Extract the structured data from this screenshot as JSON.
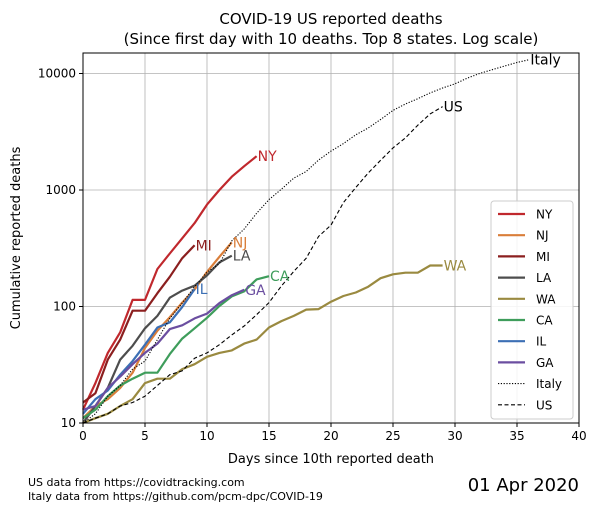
{
  "chart_data": {
    "type": "line",
    "title_line1": "COVID-19 US reported deaths",
    "title_line2": "(Since first day with 10 deaths. Top 8 states. Log scale)",
    "xlabel": "Days since 10th reported death",
    "ylabel": "Cumulative reported deaths",
    "xlim": [
      0,
      40
    ],
    "ylim": [
      10,
      15000
    ],
    "yscale": "log",
    "grid": true,
    "legend_position": "right",
    "x_ticks": [
      0,
      5,
      10,
      15,
      20,
      25,
      30,
      35,
      40
    ],
    "y_ticks": [
      {
        "value": 10,
        "label": "10"
      },
      {
        "value": 100,
        "label": "100"
      },
      {
        "value": 1000,
        "label": "1000"
      },
      {
        "value": 10000,
        "label": "10000"
      }
    ],
    "series": [
      {
        "name": "NY",
        "color": "#c0282d",
        "style": "solid",
        "end_label": "NY",
        "x": [
          0,
          1,
          2,
          3,
          4,
          5,
          6,
          7,
          8,
          9,
          10,
          11,
          12,
          13,
          14
        ],
        "y": [
          13,
          22,
          40,
          60,
          114,
          114,
          210,
          285,
          385,
          520,
          750,
          1000,
          1300,
          1600,
          1950
        ]
      },
      {
        "name": "NJ",
        "color": "#d97e3a",
        "style": "solid",
        "end_label": "NJ",
        "x": [
          0,
          1,
          2,
          3,
          4,
          5,
          6,
          7,
          8,
          9,
          10,
          11,
          12
        ],
        "y": [
          11,
          14,
          16,
          20,
          27,
          44,
          62,
          81,
          108,
          140,
          198,
          267,
          355
        ]
      },
      {
        "name": "MI",
        "color": "#8b1f1f",
        "style": "solid",
        "end_label": "MI",
        "x": [
          0,
          1,
          2,
          3,
          4,
          5,
          6,
          7,
          8,
          9
        ],
        "y": [
          15,
          18,
          35,
          52,
          92,
          92,
          130,
          180,
          260,
          335
        ]
      },
      {
        "name": "LA",
        "color": "#4d4d4d",
        "style": "solid",
        "end_label": "LA",
        "x": [
          0,
          1,
          2,
          3,
          4,
          5,
          6,
          7,
          8,
          9,
          10,
          11,
          12
        ],
        "y": [
          10,
          14,
          20,
          35,
          46,
          65,
          83,
          119,
          137,
          151,
          185,
          239,
          273
        ]
      },
      {
        "name": "WA",
        "color": "#9a8a40",
        "style": "solid",
        "end_label": "WA",
        "x": [
          0,
          1,
          2,
          3,
          4,
          5,
          6,
          7,
          8,
          9,
          10,
          11,
          12,
          13,
          14,
          15,
          16,
          17,
          18,
          19,
          20,
          21,
          22,
          23,
          24,
          25,
          26,
          27,
          28,
          29
        ],
        "y": [
          10,
          11,
          12,
          14,
          16,
          22,
          24,
          24,
          29,
          32,
          37,
          40,
          42,
          48,
          52,
          66,
          75,
          83,
          94,
          95,
          110,
          123,
          132,
          148,
          175,
          189,
          195,
          195,
          225,
          225
        ]
      },
      {
        "name": "CA",
        "color": "#3e9d5b",
        "style": "solid",
        "end_label": "CA",
        "x": [
          0,
          1,
          2,
          3,
          4,
          5,
          6,
          7,
          8,
          9,
          10,
          11,
          12,
          13,
          14,
          15
        ],
        "y": [
          11,
          13,
          17,
          21,
          24,
          27,
          27,
          39,
          53,
          65,
          80,
          101,
          122,
          135,
          171,
          182
        ]
      },
      {
        "name": "IL",
        "color": "#3c6fb4",
        "style": "solid",
        "end_label": "IL",
        "x": [
          0,
          1,
          2,
          3,
          4,
          5,
          6,
          7,
          8,
          9
        ],
        "y": [
          12,
          16,
          19,
          26,
          34,
          47,
          66,
          73,
          99,
          141
        ]
      },
      {
        "name": "GA",
        "color": "#6b4ea0",
        "style": "solid",
        "end_label": "GA",
        "x": [
          0,
          1,
          2,
          3,
          4,
          5,
          6,
          7,
          8,
          9,
          10,
          11,
          12,
          13
        ],
        "y": [
          13,
          14,
          20,
          25,
          32,
          40,
          48,
          64,
          69,
          79,
          87,
          107,
          125,
          139
        ]
      },
      {
        "name": "Italy",
        "color": "#000000",
        "style": "dotted",
        "end_label": "Italy",
        "x": [
          0,
          1,
          2,
          3,
          4,
          5,
          6,
          7,
          8,
          9,
          10,
          11,
          12,
          13,
          14,
          15,
          16,
          17,
          18,
          19,
          20,
          21,
          22,
          23,
          24,
          25,
          26,
          27,
          28,
          29,
          30,
          31,
          32,
          33,
          34,
          35,
          36
        ],
        "y": [
          10,
          12,
          17,
          21,
          29,
          34,
          52,
          79,
          107,
          148,
          197,
          233,
          366,
          463,
          631,
          827,
          1016,
          1266,
          1441,
          1809,
          2158,
          2503,
          2978,
          3405,
          4032,
          4825,
          5476,
          6077,
          6820,
          7503,
          8165,
          9134,
          10023,
          10779,
          11591,
          12428,
          13155
        ]
      },
      {
        "name": "US",
        "color": "#000000",
        "style": "dashed",
        "end_label": "US",
        "x": [
          0,
          1,
          2,
          3,
          4,
          5,
          6,
          7,
          8,
          9,
          10,
          11,
          12,
          13,
          14,
          15,
          16,
          17,
          18,
          19,
          20,
          21,
          22,
          23,
          24,
          25,
          26,
          27,
          28,
          29
        ],
        "y": [
          10,
          11,
          12,
          14,
          15,
          17,
          21,
          26,
          28,
          36,
          40,
          47,
          57,
          68,
          85,
          108,
          150,
          200,
          260,
          400,
          500,
          780,
          1050,
          1400,
          1800,
          2300,
          2800,
          3600,
          4500,
          5200
        ]
      }
    ]
  },
  "footer": {
    "source_us": "US data from https://covidtracking.com",
    "source_italy": "Italy data from https://github.com/pcm-dpc/COVID-19",
    "date": "01 Apr 2020"
  }
}
